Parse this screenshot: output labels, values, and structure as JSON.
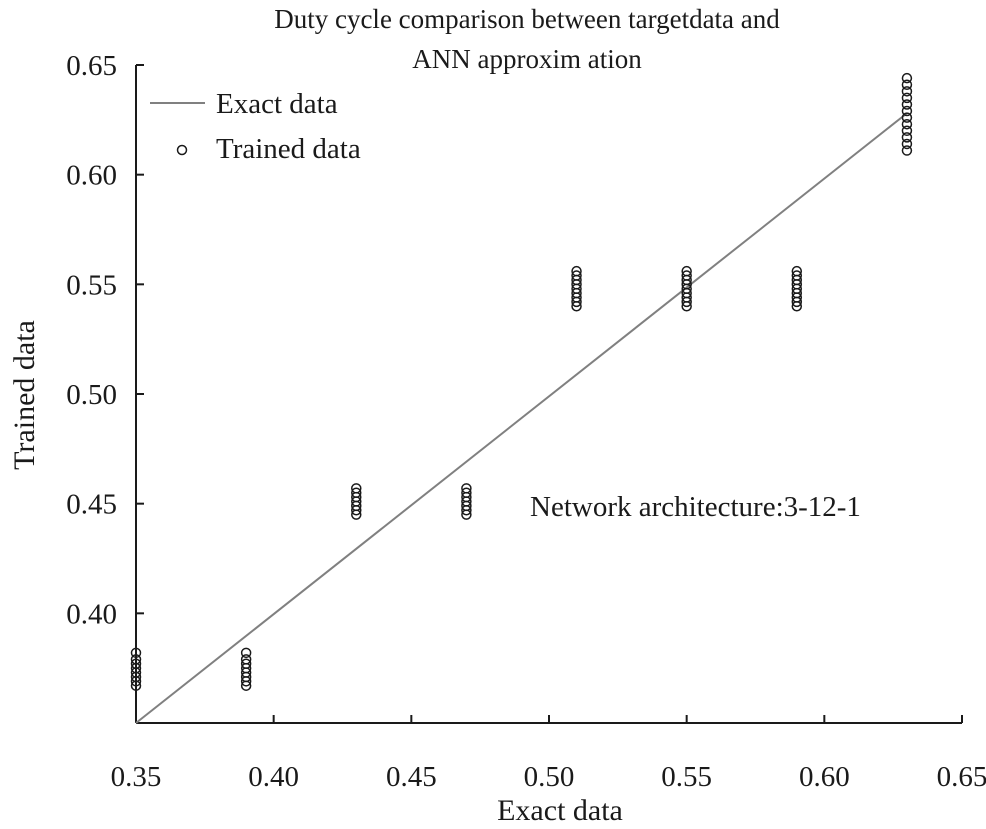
{
  "chart_data": {
    "type": "scatter",
    "title": [
      "Duty cycle comparison between targetdata and",
      "ANN approxim ation"
    ],
    "xlabel": "Exact data",
    "ylabel": "Trained data",
    "xlim": [
      0.35,
      0.65
    ],
    "ylim": [
      0.35,
      0.65
    ],
    "xticks": [
      0.35,
      0.4,
      0.45,
      0.5,
      0.55,
      0.6,
      0.65
    ],
    "xtick_labels": [
      "0.35",
      "0.40",
      "0.45",
      "0.50",
      "0.55",
      "0.60",
      "0.65"
    ],
    "yticks": [
      0.4,
      0.45,
      0.5,
      0.55,
      0.6,
      0.65
    ],
    "ytick_labels": [
      "0.40",
      "0.45",
      "0.50",
      "0.55",
      "0.60",
      "0.65"
    ],
    "grid": false,
    "legend": {
      "position": "top-left",
      "entries": [
        "Exact data",
        "Trained data"
      ]
    },
    "annotation": "Network architecture:3-12-1",
    "series": [
      {
        "name": "Exact data",
        "kind": "line",
        "color": "#808080",
        "x": [
          0.35,
          0.63
        ],
        "y": [
          0.35,
          0.628
        ]
      },
      {
        "name": "Trained data",
        "kind": "scatter",
        "color": "#1a1a1a",
        "clusters": [
          {
            "x": 0.35,
            "y": [
              0.367,
              0.369,
              0.371,
              0.373,
              0.375,
              0.377,
              0.379,
              0.382
            ]
          },
          {
            "x": 0.39,
            "y": [
              0.367,
              0.369,
              0.371,
              0.373,
              0.375,
              0.377,
              0.379,
              0.382
            ]
          },
          {
            "x": 0.43,
            "y": [
              0.445,
              0.447,
              0.449,
              0.451,
              0.453,
              0.455,
              0.457
            ]
          },
          {
            "x": 0.47,
            "y": [
              0.445,
              0.447,
              0.449,
              0.451,
              0.453,
              0.455,
              0.457
            ]
          },
          {
            "x": 0.51,
            "y": [
              0.54,
              0.542,
              0.544,
              0.546,
              0.548,
              0.55,
              0.552,
              0.554,
              0.556
            ]
          },
          {
            "x": 0.55,
            "y": [
              0.54,
              0.542,
              0.544,
              0.546,
              0.548,
              0.55,
              0.552,
              0.554,
              0.556
            ]
          },
          {
            "x": 0.59,
            "y": [
              0.54,
              0.542,
              0.544,
              0.546,
              0.548,
              0.55,
              0.552,
              0.554,
              0.556
            ]
          },
          {
            "x": 0.63,
            "y": [
              0.611,
              0.614,
              0.617,
              0.62,
              0.623,
              0.626,
              0.629,
              0.632,
              0.635,
              0.638,
              0.641,
              0.644
            ]
          }
        ]
      }
    ]
  }
}
